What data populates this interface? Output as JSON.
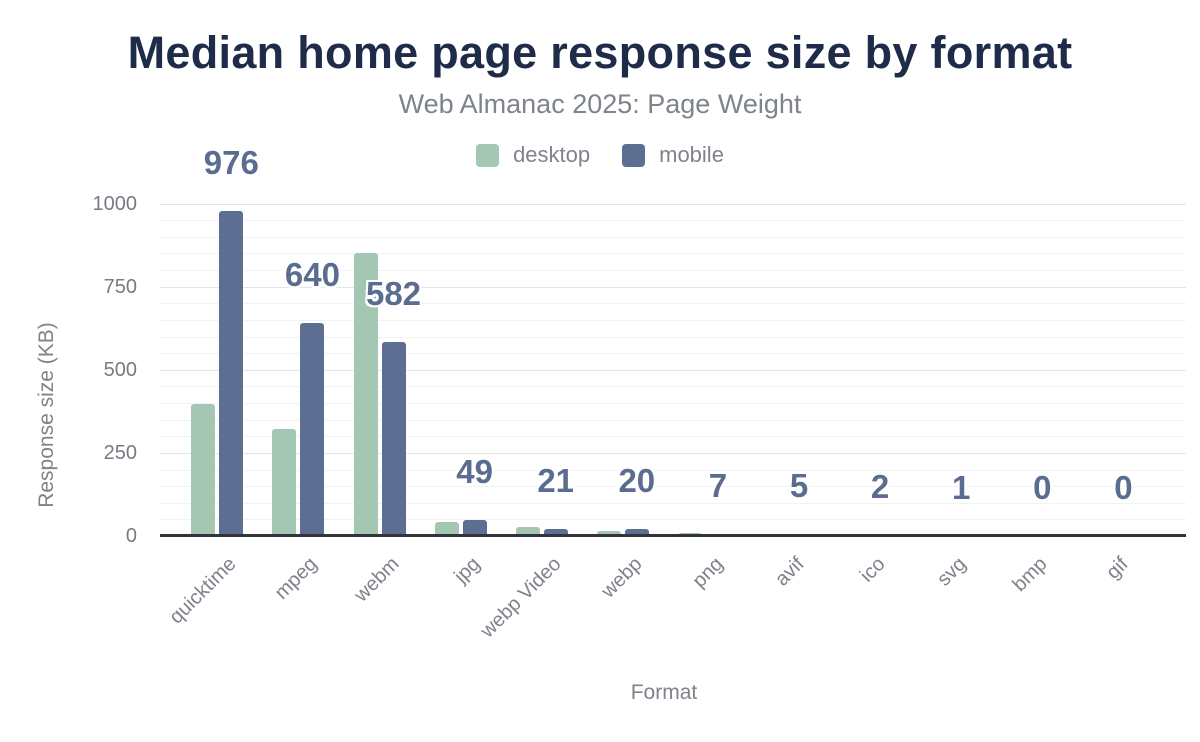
{
  "chart_data": {
    "type": "bar",
    "title": "Median home page response size by format",
    "subtitle": "Web Almanac 2025: Page Weight",
    "xlabel": "Format",
    "ylabel": "Response size (KB)",
    "categories": [
      "quicktime",
      "mpeg",
      "webm",
      "jpg",
      "webp Video",
      "webp",
      "png",
      "avif",
      "ico",
      "svg",
      "bmp",
      "gif"
    ],
    "series": [
      {
        "name": "desktop",
        "color": "#a3c7b3",
        "values": [
          397,
          323,
          852,
          41,
          28,
          16,
          8,
          7,
          2,
          1,
          0,
          0
        ]
      },
      {
        "name": "mobile",
        "color": "#5c6e91",
        "values": [
          976,
          640,
          582,
          49,
          21,
          20,
          7,
          5,
          2,
          1,
          0,
          0
        ]
      }
    ],
    "value_labels": [
      "976",
      "640",
      "582",
      "49",
      "21",
      "20",
      "7",
      "5",
      "2",
      "1",
      "0",
      "0"
    ],
    "labeled_series": "mobile",
    "yticks": [
      "0",
      "250",
      "500",
      "750",
      "1000"
    ],
    "ylim": [
      0,
      1000
    ],
    "grid": {
      "minor_step": 50,
      "major_step": 250,
      "visible": true
    },
    "legend_position": "top-center"
  },
  "colors": {
    "background": "#ffffff",
    "title_text": "#1e2b49",
    "subtitle_text": "#7e838c",
    "axis_text": "#7e828a",
    "tick_text": "#767b83",
    "value_label_text": "#5a6c8f",
    "axis_line": "#31343b",
    "gridline_major": "#e3e4e7",
    "gridline_minor": "#f2f2f4",
    "desktop_series": "#a3c7b3",
    "mobile_series": "#5c6e91"
  }
}
